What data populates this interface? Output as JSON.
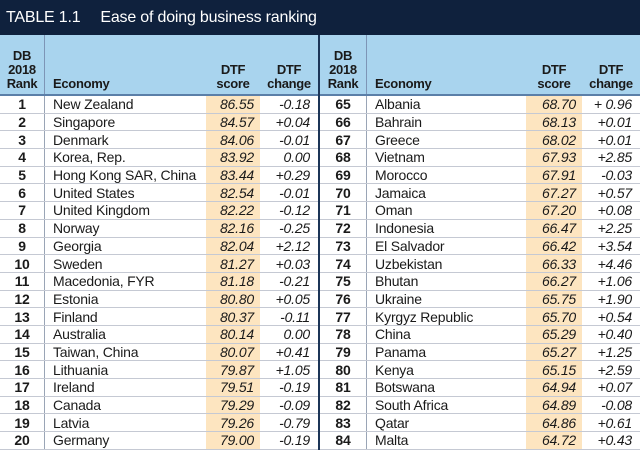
{
  "title": {
    "number": "TABLE 1.1",
    "text": "Ease of doing business ranking"
  },
  "headers": {
    "rank": [
      "DB",
      "2018",
      "Rank"
    ],
    "economy": "Economy",
    "score": [
      "DTF",
      "score"
    ],
    "change": [
      "DTF",
      "change"
    ]
  },
  "colors": {
    "title_bg": "#0f213d",
    "header_bg": "#a9d4ee",
    "score_bg": "#fde5c0"
  },
  "left_rows": [
    {
      "rank": "1",
      "economy": "New Zealand",
      "score": "86.55",
      "change": "-0.18"
    },
    {
      "rank": "2",
      "economy": "Singapore",
      "score": "84.57",
      "change": "+0.04"
    },
    {
      "rank": "3",
      "economy": "Denmark",
      "score": "84.06",
      "change": "-0.01"
    },
    {
      "rank": "4",
      "economy": "Korea, Rep.",
      "score": "83.92",
      "change": "0.00"
    },
    {
      "rank": "5",
      "economy": "Hong Kong SAR, China",
      "score": "83.44",
      "change": "+0.29"
    },
    {
      "rank": "6",
      "economy": "United States",
      "score": "82.54",
      "change": "-0.01"
    },
    {
      "rank": "7",
      "economy": "United Kingdom",
      "score": "82.22",
      "change": "-0.12"
    },
    {
      "rank": "8",
      "economy": "Norway",
      "score": "82.16",
      "change": "-0.25"
    },
    {
      "rank": "9",
      "economy": "Georgia",
      "score": "82.04",
      "change": "+2.12"
    },
    {
      "rank": "10",
      "economy": "Sweden",
      "score": "81.27",
      "change": "+0.03"
    },
    {
      "rank": "11",
      "economy": "Macedonia, FYR",
      "score": "81.18",
      "change": "-0.21"
    },
    {
      "rank": "12",
      "economy": "Estonia",
      "score": "80.80",
      "change": "+0.05"
    },
    {
      "rank": "13",
      "economy": "Finland",
      "score": "80.37",
      "change": "-0.11"
    },
    {
      "rank": "14",
      "economy": "Australia",
      "score": "80.14",
      "change": "0.00"
    },
    {
      "rank": "15",
      "economy": "Taiwan, China",
      "score": "80.07",
      "change": "+0.41"
    },
    {
      "rank": "16",
      "economy": "Lithuania",
      "score": "79.87",
      "change": "+1.05"
    },
    {
      "rank": "17",
      "economy": "Ireland",
      "score": "79.51",
      "change": "-0.19"
    },
    {
      "rank": "18",
      "economy": "Canada",
      "score": "79.29",
      "change": "-0.09"
    },
    {
      "rank": "19",
      "economy": "Latvia",
      "score": "79.26",
      "change": "-0.79"
    },
    {
      "rank": "20",
      "economy": "Germany",
      "score": "79.00",
      "change": "-0.19"
    }
  ],
  "right_rows": [
    {
      "rank": "65",
      "economy": "Albania",
      "score": "68.70",
      "change": "+ 0.96"
    },
    {
      "rank": "66",
      "economy": "Bahrain",
      "score": "68.13",
      "change": "+0.01"
    },
    {
      "rank": "67",
      "economy": "Greece",
      "score": "68.02",
      "change": "+0.01"
    },
    {
      "rank": "68",
      "economy": "Vietnam",
      "score": "67.93",
      "change": "+2.85"
    },
    {
      "rank": "69",
      "economy": "Morocco",
      "score": "67.91",
      "change": "-0.03"
    },
    {
      "rank": "70",
      "economy": "Jamaica",
      "score": "67.27",
      "change": "+0.57"
    },
    {
      "rank": "71",
      "economy": "Oman",
      "score": "67.20",
      "change": "+0.08"
    },
    {
      "rank": "72",
      "economy": "Indonesia",
      "score": "66.47",
      "change": "+2.25"
    },
    {
      "rank": "73",
      "economy": "El Salvador",
      "score": "66.42",
      "change": "+3.54"
    },
    {
      "rank": "74",
      "economy": "Uzbekistan",
      "score": "66.33",
      "change": "+4.46"
    },
    {
      "rank": "75",
      "economy": "Bhutan",
      "score": "66.27",
      "change": "+1.06"
    },
    {
      "rank": "76",
      "economy": "Ukraine",
      "score": "65.75",
      "change": "+1.90"
    },
    {
      "rank": "77",
      "economy": "Kyrgyz Republic",
      "score": "65.70",
      "change": "+0.54"
    },
    {
      "rank": "78",
      "economy": "China",
      "score": "65.29",
      "change": "+0.40"
    },
    {
      "rank": "79",
      "economy": "Panama",
      "score": "65.27",
      "change": "+1.25"
    },
    {
      "rank": "80",
      "economy": "Kenya",
      "score": "65.15",
      "change": "+2.59"
    },
    {
      "rank": "81",
      "economy": "Botswana",
      "score": "64.94",
      "change": "+0.07"
    },
    {
      "rank": "82",
      "economy": "South Africa",
      "score": "64.89",
      "change": "-0.08"
    },
    {
      "rank": "83",
      "economy": "Qatar",
      "score": "64.86",
      "change": "+0.61"
    },
    {
      "rank": "84",
      "economy": "Malta",
      "score": "64.72",
      "change": "+0.43"
    }
  ]
}
